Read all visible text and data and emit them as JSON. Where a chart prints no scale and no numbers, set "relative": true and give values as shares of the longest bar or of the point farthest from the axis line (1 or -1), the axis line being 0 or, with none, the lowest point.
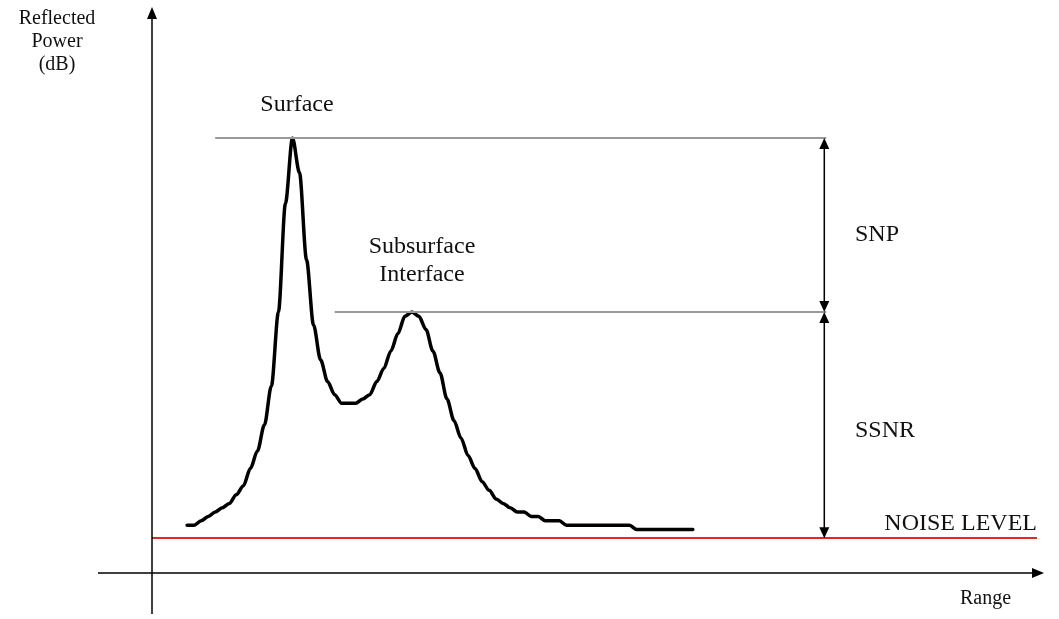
{
  "chart_data": {
    "type": "line",
    "relative": true,
    "xlabel": "Range",
    "ylabel": "Reflected Power (dB)",
    "line_style": "solid",
    "categories": [
      null,
      null,
      null,
      null,
      null,
      null,
      null,
      null,
      null,
      null,
      null,
      null,
      null,
      null,
      null,
      null,
      null,
      null,
      null,
      null,
      null,
      null,
      null,
      null,
      null,
      null,
      null,
      null,
      null,
      null,
      null,
      null,
      null,
      null,
      null,
      null,
      null,
      null,
      null,
      null,
      null,
      null,
      null,
      null,
      null,
      null,
      null,
      null,
      null,
      null,
      null,
      null,
      null,
      null,
      null,
      null,
      null,
      null,
      null,
      null,
      null,
      null,
      null,
      null,
      null,
      null,
      null,
      null,
      null,
      null,
      null,
      null,
      null,
      null,
      null,
      null,
      null,
      null,
      null,
      null,
      null,
      null,
      null,
      null,
      null,
      null,
      null,
      null,
      null,
      null,
      null,
      null,
      null,
      null,
      null,
      null,
      null,
      null,
      null,
      null,
      null,
      null,
      null,
      null,
      null,
      null,
      null,
      null,
      null,
      null,
      null,
      null,
      null,
      null,
      null,
      null,
      null,
      null,
      null,
      null,
      null,
      null,
      null,
      null,
      null,
      null,
      null
    ],
    "series": [
      {
        "color": "#000000",
        "values": [
          null,
          null,
          null,
          null,
          null,
          0.11,
          0.11,
          0.12,
          0.13,
          0.14,
          0.15,
          0.16,
          0.18,
          0.2,
          0.24,
          0.28,
          0.34,
          0.43,
          0.6,
          0.85,
          1,
          0.92,
          0.72,
          0.57,
          0.49,
          0.44,
          0.41,
          0.39,
          0.39,
          0.39,
          0.4,
          0.41,
          0.44,
          0.47,
          0.51,
          0.55,
          0.59,
          0.6,
          0.59,
          0.56,
          0.51,
          0.46,
          0.4,
          0.35,
          0.31,
          0.27,
          0.24,
          0.21,
          0.19,
          0.17,
          0.16,
          0.15,
          0.14,
          0.14,
          0.13,
          0.13,
          0.12,
          0.12,
          0.12,
          0.11,
          0.11,
          0.11,
          0.11,
          0.11,
          0.11,
          0.11,
          0.11,
          0.11,
          0.11,
          0.1,
          0.1,
          0.1,
          0.1,
          0.1,
          0.1,
          0.1,
          0.1,
          0.1,
          null,
          null,
          null,
          null,
          null,
          null,
          null,
          null,
          null,
          null,
          null,
          null,
          null,
          null,
          null,
          null,
          null,
          null,
          null,
          null,
          null,
          null,
          null,
          null,
          null,
          null,
          null,
          null,
          null,
          null,
          null,
          null,
          null,
          null,
          null,
          null,
          null,
          null,
          null,
          null,
          null,
          null,
          null,
          null,
          null,
          null,
          null,
          null,
          null
        ]
      }
    ],
    "ref_lines": [
      {
        "axis": "y",
        "value": 1,
        "color": "#999999"
      },
      {
        "axis": "y",
        "value": 0.6,
        "color": "#999999"
      },
      {
        "axis": "y",
        "value": 0.08,
        "label": "NOISE LEVEL",
        "color": "#e8242b"
      }
    ],
    "annotations": [
      "Surface",
      "Subsurface Interface",
      "SNP",
      "SSNR"
    ]
  }
}
